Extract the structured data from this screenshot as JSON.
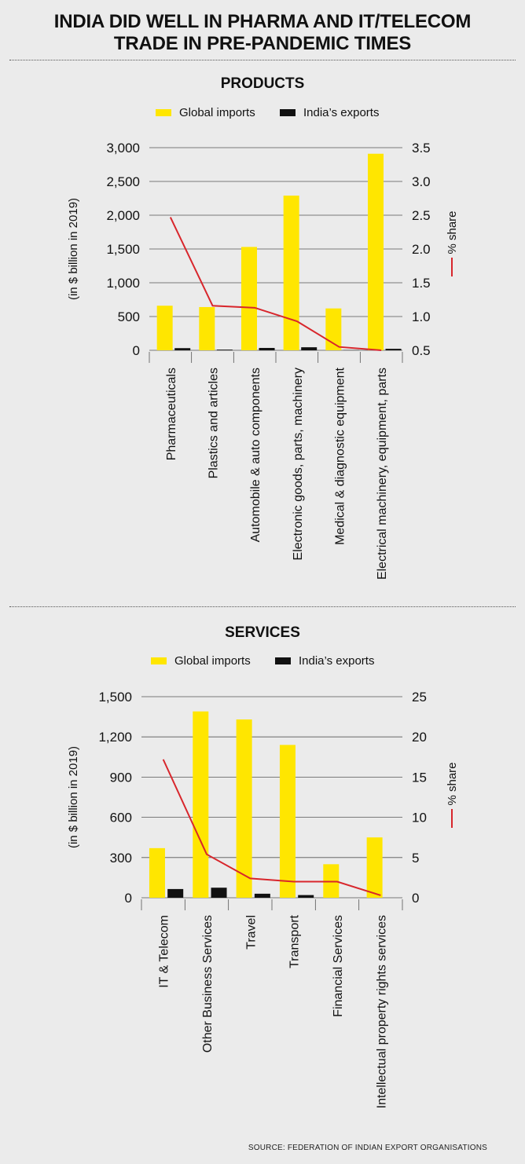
{
  "headline": {
    "line1": "INDIA DID WELL IN PHARMA AND IT/TELECOM",
    "line2": "TRADE IN PRE-PANDEMIC TIMES"
  },
  "source": "SOURCE: FEDERATION OF INDIAN EXPORT ORGANISATIONS",
  "colors": {
    "imports": "#ffe600",
    "exports": "#111111",
    "share": "#d8262c"
  },
  "chart_data": [
    {
      "type": "bar",
      "title": "PRODUCTS",
      "ylabel": "(in $ billion in 2019)",
      "y2label": "% share",
      "legend": [
        "Global imports",
        "India’s exports"
      ],
      "categories": [
        "Pharmaceuticals",
        "Plastics and articles",
        "Automobile & auto components",
        "Electronic goods, parts, machinery",
        "Medical & diagnostic equipment",
        "Electrical machinery, equipment, parts"
      ],
      "ylim": [
        0,
        3000
      ],
      "yticks": [
        0,
        500,
        1000,
        1500,
        2000,
        2500,
        3000
      ],
      "yticklabels": [
        "0",
        "500",
        "1,000",
        "1,500",
        "2,000",
        "2,500",
        "3,000"
      ],
      "y2lim": [
        0.5,
        3.5
      ],
      "y2ticks": [
        0.5,
        1.0,
        1.5,
        2.0,
        2.5,
        3.0,
        3.5
      ],
      "y2ticklabels": [
        "0.5",
        "1.0",
        "1.5",
        "2.0",
        "2.5",
        "3.0",
        "3.5"
      ],
      "series": [
        {
          "name": "Global imports",
          "values": [
            660,
            640,
            1530,
            2290,
            620,
            2910
          ]
        },
        {
          "name": "India’s exports",
          "values": [
            32,
            10,
            35,
            45,
            3,
            22
          ]
        },
        {
          "name": "% share",
          "values": [
            2.47,
            1.16,
            1.13,
            0.93,
            0.55,
            0.5
          ]
        }
      ]
    },
    {
      "type": "bar",
      "title": "SERVICES",
      "ylabel": "(in $ billion in 2019)",
      "y2label": "% share",
      "legend": [
        "Global imports",
        "India’s exports"
      ],
      "categories": [
        "IT & Telecom",
        "Other Business Services",
        "Travel",
        "Transport",
        "Financial Services",
        "Intellectual property rights services"
      ],
      "ylim": [
        0,
        1500
      ],
      "yticks": [
        0,
        300,
        600,
        900,
        1200,
        1500
      ],
      "yticklabels": [
        "0",
        "300",
        "600",
        "900",
        "1,200",
        "1,500"
      ],
      "y2lim": [
        0,
        25
      ],
      "y2ticks": [
        0,
        5,
        10,
        15,
        20,
        25
      ],
      "y2ticklabels": [
        "0",
        "5",
        "10",
        "15",
        "20",
        "25"
      ],
      "series": [
        {
          "name": "Global imports",
          "values": [
            370,
            1390,
            1330,
            1140,
            250,
            450
          ]
        },
        {
          "name": "India’s exports",
          "values": [
            65,
            75,
            30,
            20,
            0,
            0
          ]
        },
        {
          "name": "% share",
          "values": [
            17.2,
            5.4,
            2.4,
            2.0,
            2.0,
            0.3
          ]
        }
      ]
    }
  ]
}
